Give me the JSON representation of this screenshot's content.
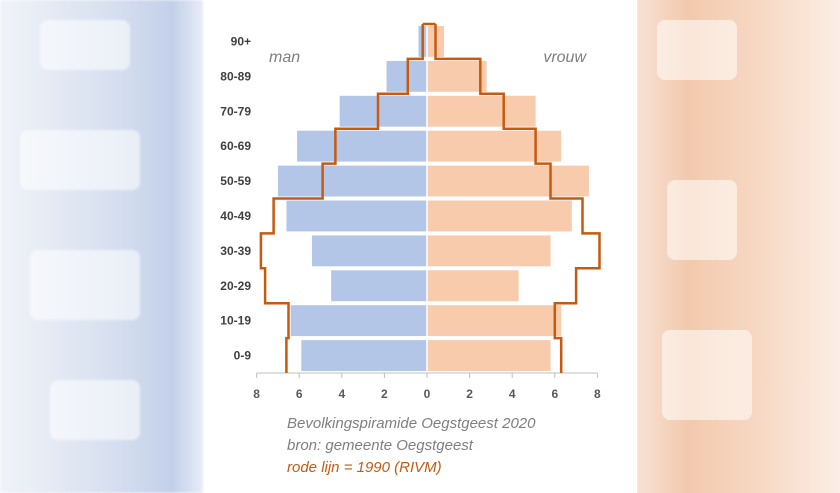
{
  "chart_data": {
    "type": "bar",
    "orientation": "horizontal-population-pyramid",
    "categories": [
      "0-9",
      "10-19",
      "20-29",
      "30-39",
      "40-49",
      "50-59",
      "60-69",
      "70-79",
      "80-89",
      "90+"
    ],
    "series": [
      {
        "name": "man",
        "values": [
          5.9,
          6.4,
          4.5,
          5.4,
          6.6,
          7.0,
          6.1,
          4.1,
          1.9,
          0.4
        ]
      },
      {
        "name": "vrouw",
        "values": [
          5.8,
          6.3,
          4.3,
          5.8,
          6.8,
          7.6,
          6.3,
          5.1,
          2.8,
          0.8
        ]
      }
    ],
    "line_1990": {
      "man": [
        6.6,
        6.5,
        7.6,
        7.8,
        7.2,
        4.9,
        4.3,
        2.3,
        0.9,
        0.2
      ],
      "vrouw": [
        6.3,
        6.0,
        7.0,
        8.1,
        7.3,
        5.8,
        5.1,
        3.6,
        2.5,
        0.4
      ]
    },
    "xlim": [
      -8,
      8
    ],
    "xticks": [
      "8",
      "6",
      "4",
      "2",
      "0",
      "2",
      "4",
      "6",
      "8"
    ],
    "colors": {
      "man": "#b4c6e7",
      "vrouw": "#f8cbad",
      "line_1990": "#c55a11",
      "axis": "#bfbfbf",
      "category_labels": "#404040",
      "tick_labels": "#595959"
    },
    "labels": {
      "left": "man",
      "right": "vrouw"
    },
    "caption": {
      "line1": "Bevolkingspiramide Oegstgeest 2020",
      "line2": "bron: gemeente Oegstgeest",
      "line3": "rode lijn = 1990 (RIVM)"
    }
  }
}
